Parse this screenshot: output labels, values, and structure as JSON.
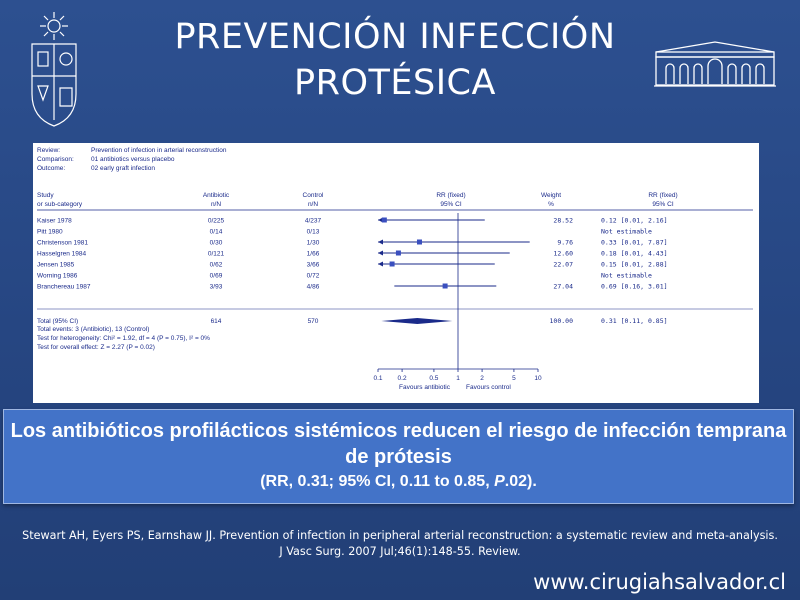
{
  "slide": {
    "title_line1": "PREVENCIÓN INFECCIÓN",
    "title_line2": "PROTÉSICA",
    "summary_line1": "Los antibióticos profilácticos sistémicos reducen el riesgo de infección temprana de prótesis",
    "summary_stats_pre": "(RR, 0.31; 95% CI, 0.11 to 0.85, ",
    "summary_stats_p": "P",
    "summary_stats_post": ".02).",
    "citation": "Stewart AH, Eyers PS, Earnshaw JJ. Prevention of infection in peripheral arterial reconstruction: a systematic review and meta-analysis. J Vasc Surg. 2007 Jul;46(1):148-55. Review.",
    "website": "www.cirugiahsalvador.cl",
    "colors": {
      "background": "#28497f",
      "summary_box": "#4373c8",
      "forest_marks": "#1a2a8a"
    },
    "icons": {
      "left_logo": "university-crest-icon",
      "right_logo": "building-facade-icon"
    }
  },
  "chart_data": {
    "type": "forest",
    "header": {
      "review_label": "Review:",
      "review_value": "Prevention of infection in arterial reconstruction",
      "comparison_label": "Comparison:",
      "comparison_value": "01 antibiotics versus placebo",
      "outcome_label": "Outcome:",
      "outcome_value": "02 early graft infection"
    },
    "columns": {
      "study_1": "Study",
      "study_2": "or sub-category",
      "antibiotic_1": "Antibiotic",
      "antibiotic_2": "n/N",
      "control_1": "Control",
      "control_2": "n/N",
      "rr_1": "RR (fixed)",
      "rr_2": "95% CI",
      "weight_1": "Weight",
      "weight_2": "%",
      "rrci_1": "RR (fixed)",
      "rrci_2": "95% CI"
    },
    "studies": [
      {
        "name": "Kaiser 1978",
        "antibiotic": "0/225",
        "control": "4/237",
        "weight": "28.52",
        "rr_text": "0.12 [0.01, 2.16]",
        "rr": 0.12,
        "lo": 0.01,
        "hi": 2.16
      },
      {
        "name": "Pitt 1980",
        "antibiotic": "0/14",
        "control": "0/13",
        "weight": "",
        "rr_text": "Not estimable",
        "rr": null,
        "lo": null,
        "hi": null
      },
      {
        "name": "Christenson 1981",
        "antibiotic": "0/30",
        "control": "1/30",
        "weight": "9.76",
        "rr_text": "0.33 [0.01, 7.87]",
        "rr": 0.33,
        "lo": 0.01,
        "hi": 7.87
      },
      {
        "name": "Hasselgren 1984",
        "antibiotic": "0/121",
        "control": "1/66",
        "weight": "12.60",
        "rr_text": "0.18 [0.01, 4.43]",
        "rr": 0.18,
        "lo": 0.01,
        "hi": 4.43
      },
      {
        "name": "Jensen 1985",
        "antibiotic": "0/62",
        "control": "3/66",
        "weight": "22.07",
        "rr_text": "0.15 [0.01, 2.88]",
        "rr": 0.15,
        "lo": 0.01,
        "hi": 2.88
      },
      {
        "name": "Worning 1986",
        "antibiotic": "0/69",
        "control": "0/72",
        "weight": "",
        "rr_text": "Not estimable",
        "rr": null,
        "lo": null,
        "hi": null
      },
      {
        "name": "Branchereau 1987",
        "antibiotic": "3/93",
        "control": "4/86",
        "weight": "27.04",
        "rr_text": "0.69 [0.16, 3.01]",
        "rr": 0.69,
        "lo": 0.16,
        "hi": 3.01
      }
    ],
    "total": {
      "name": "Total (95% CI)",
      "antibiotic": "614",
      "control": "570",
      "weight": "100.00",
      "rr_text": "0.31 [0.11, 0.85]",
      "rr": 0.31,
      "lo": 0.11,
      "hi": 0.85
    },
    "footnotes": [
      "Total events: 3 (Antibiotic), 13 (Control)",
      "Test for heterogeneity: Chi² = 1.92, df = 4 (P = 0.75), I² = 0%",
      "Test for overall effect: Z = 2.27 (P = 0.02)"
    ],
    "x_axis": {
      "scale": "log",
      "ticks": [
        0.1,
        0.2,
        0.5,
        1,
        2,
        5,
        10
      ],
      "tick_labels": [
        "0.1",
        "0.2",
        "0.5",
        "1",
        "2",
        "5",
        "10"
      ],
      "lim": [
        0.1,
        10
      ]
    },
    "favours_left": "Favours antibiotic",
    "favours_right": "Favours control"
  }
}
